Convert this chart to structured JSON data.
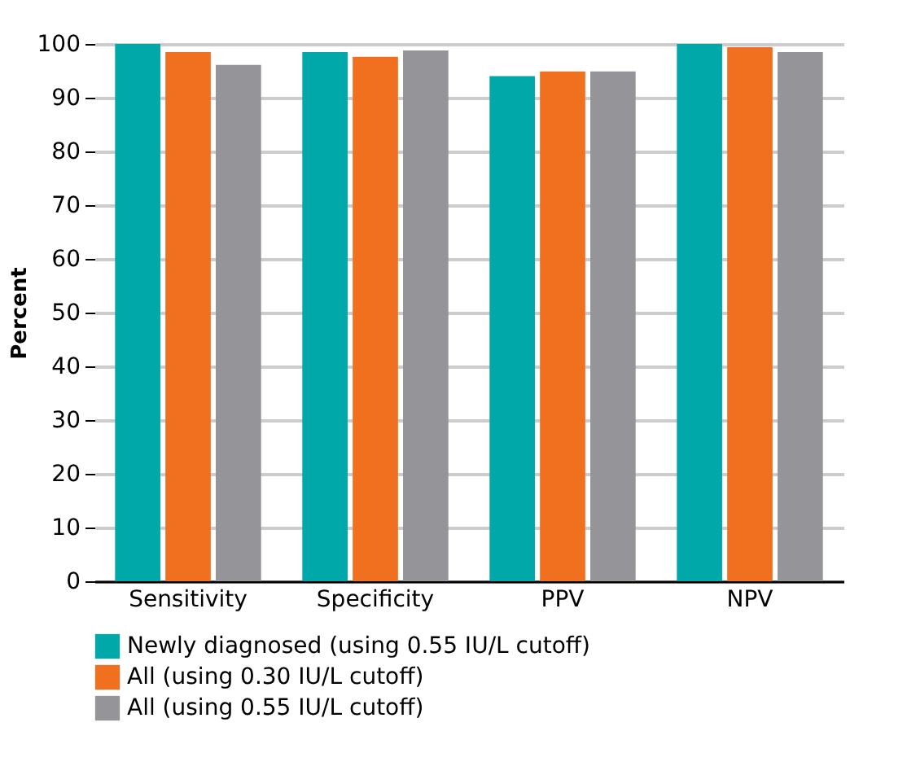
{
  "chart_data": {
    "type": "bar",
    "ylabel": "Percent",
    "categories": [
      "Sensitivity",
      "Specificity",
      "PPV",
      "NPV"
    ],
    "series": [
      {
        "name": "Newly diagnosed (using 0.55 IU/L cutoff)",
        "color": "#00a8aa",
        "values": [
          100,
          98.5,
          94,
          100
        ]
      },
      {
        "name": "All (using 0.30 IU/L cutoff)",
        "color": "#f07020",
        "values": [
          98.5,
          97.6,
          94.9,
          99.4
        ]
      },
      {
        "name": "All (using 0.55 IU/L cutoff)",
        "color": "#959599",
        "values": [
          96.1,
          98.8,
          94.9,
          98.5
        ]
      }
    ],
    "ylim": [
      0,
      100
    ],
    "yticks": [
      0,
      10,
      20,
      30,
      40,
      50,
      60,
      70,
      80,
      90,
      100
    ],
    "grid": "y",
    "legend": "bottom"
  }
}
